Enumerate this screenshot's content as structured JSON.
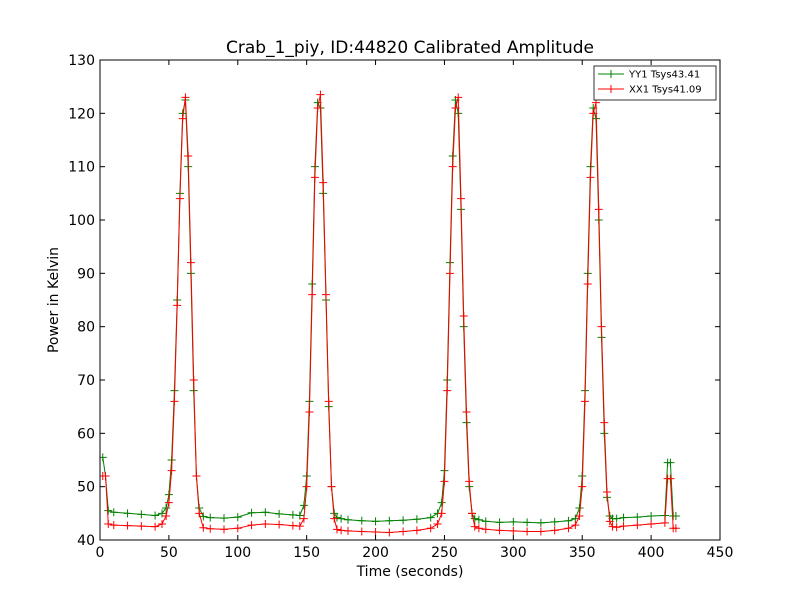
{
  "chart_data": {
    "type": "line",
    "title": "Crab_1_piy, ID:44820 Calibrated Amplitude",
    "xlabel": "Time (seconds)",
    "ylabel": "Power in Kelvin",
    "xlim": [
      0,
      450
    ],
    "ylim": [
      40,
      130
    ],
    "xticks": [
      0,
      50,
      100,
      150,
      200,
      250,
      300,
      350,
      400,
      450
    ],
    "yticks": [
      40,
      50,
      60,
      70,
      80,
      90,
      100,
      110,
      120,
      130
    ],
    "grid": false,
    "legend_position": "top-right",
    "series": [
      {
        "name": "YY1 Tsys43.41",
        "color": "#008000",
        "marker": "plus",
        "x": [
          2,
          4,
          6,
          10,
          20,
          30,
          40,
          45,
          48,
          50,
          52,
          54,
          56,
          58,
          60,
          62,
          64,
          66,
          68,
          70,
          72,
          75,
          80,
          90,
          100,
          110,
          120,
          130,
          140,
          145,
          148,
          150,
          152,
          154,
          156,
          158,
          160,
          162,
          164,
          166,
          168,
          170,
          172,
          175,
          180,
          190,
          200,
          210,
          220,
          230,
          240,
          245,
          248,
          250,
          252,
          254,
          256,
          258,
          260,
          262,
          264,
          266,
          268,
          270,
          272,
          275,
          280,
          290,
          300,
          310,
          320,
          330,
          340,
          345,
          348,
          350,
          352,
          354,
          356,
          358,
          360,
          362,
          364,
          366,
          368,
          370,
          372,
          375,
          380,
          390,
          400,
          410,
          412,
          414,
          416,
          418
        ],
        "y": [
          55.5,
          52,
          45.5,
          45.2,
          45,
          44.8,
          44.6,
          45,
          46,
          48.5,
          55,
          68,
          85,
          105,
          120,
          122.5,
          110,
          90,
          68,
          52,
          46,
          44.4,
          44.2,
          44.1,
          44.3,
          45.1,
          45.2,
          44.9,
          44.7,
          44.6,
          46.5,
          52,
          66,
          88,
          110,
          122,
          121,
          105,
          85,
          65,
          50,
          45,
          44.2,
          44,
          43.8,
          43.6,
          43.5,
          43.6,
          43.7,
          43.9,
          44.2,
          45,
          47,
          53,
          70,
          92,
          112,
          122.5,
          120,
          102,
          80,
          62,
          50,
          45,
          44,
          43.8,
          43.5,
          43.3,
          43.4,
          43.3,
          43.2,
          43.4,
          43.6,
          44,
          46,
          52,
          68,
          90,
          110,
          121,
          119,
          100,
          78,
          60,
          48,
          44.5,
          44,
          44,
          44.2,
          44.3,
          44.5,
          44.6,
          54.5,
          54.5,
          44.5,
          44.5
        ]
      },
      {
        "name": "XX1 Tsys41.09",
        "color": "#ff0000",
        "marker": "plus",
        "x": [
          2,
          4,
          6,
          10,
          20,
          30,
          40,
          45,
          48,
          50,
          52,
          54,
          56,
          58,
          60,
          62,
          64,
          66,
          68,
          70,
          72,
          75,
          80,
          90,
          100,
          110,
          120,
          130,
          140,
          145,
          148,
          150,
          152,
          154,
          156,
          158,
          160,
          162,
          164,
          166,
          168,
          170,
          172,
          175,
          180,
          190,
          200,
          210,
          220,
          230,
          240,
          245,
          248,
          250,
          252,
          254,
          256,
          258,
          260,
          262,
          264,
          266,
          268,
          270,
          272,
          275,
          280,
          290,
          300,
          310,
          320,
          330,
          340,
          345,
          348,
          350,
          352,
          354,
          356,
          358,
          360,
          362,
          364,
          366,
          368,
          370,
          372,
          375,
          380,
          390,
          400,
          410,
          412,
          414,
          416,
          418
        ],
        "y": [
          52,
          52,
          43,
          42.8,
          42.7,
          42.6,
          42.5,
          43,
          44.5,
          47,
          53,
          66,
          84,
          104,
          119,
          123,
          112,
          92,
          70,
          52,
          45,
          42.3,
          42.1,
          42,
          42.2,
          42.8,
          43,
          42.9,
          42.7,
          42.6,
          44,
          50,
          64,
          86,
          108,
          121,
          123.5,
          107,
          86,
          66,
          50,
          44,
          42,
          41.8,
          41.7,
          41.6,
          41.5,
          41.4,
          41.6,
          41.8,
          42.2,
          43,
          45,
          51,
          68,
          90,
          110,
          121,
          123,
          104,
          82,
          64,
          51,
          45,
          42.5,
          42.2,
          42,
          41.8,
          41.7,
          41.6,
          41.6,
          41.8,
          42.2,
          42.8,
          44.5,
          50,
          66,
          88,
          108,
          120,
          122,
          102,
          80,
          62,
          49,
          43.5,
          42.5,
          42.4,
          42.6,
          42.8,
          43,
          43.2,
          51.5,
          51.5,
          42.2,
          42.2
        ]
      }
    ]
  }
}
